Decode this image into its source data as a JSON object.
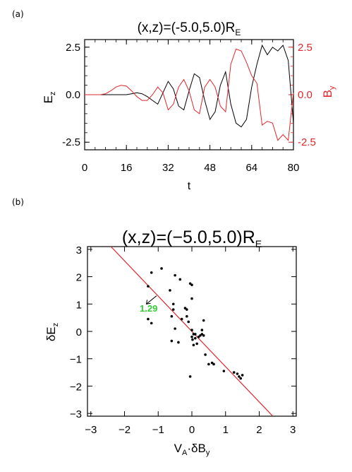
{
  "chart_data": [
    {
      "panel_label": "(a)",
      "type": "line",
      "title": "(x,z)=(-5.0,5.0)R",
      "title_subscript": "E",
      "xlabel": "t",
      "ylabel_left": "E",
      "ylabel_left_subscript": "z",
      "ylabel_right": "B",
      "ylabel_right_subscript": "y",
      "xlim": [
        0,
        80
      ],
      "ylim": [
        -2.9,
        2.9
      ],
      "x_ticks": [
        "0",
        "16",
        "32",
        "48",
        "64",
        "80"
      ],
      "x_tick_values": [
        0,
        16,
        32,
        48,
        64,
        80
      ],
      "y_ticks_left": [
        "2.5",
        "0.0",
        "-2.5"
      ],
      "y_ticks_right": [
        "2.5",
        "0.0",
        "-2.5"
      ],
      "y_tick_values": [
        2.5,
        0.0,
        -2.5
      ],
      "grid": false,
      "colors": {
        "Ez": "#000000",
        "By": "#e0262b",
        "axis": "#000000"
      },
      "series": [
        {
          "key": "Ez",
          "color": "#000000",
          "x": [
            0,
            2,
            4,
            6,
            8,
            10,
            12,
            14,
            16,
            18,
            20,
            22,
            24,
            26,
            28,
            30,
            32,
            34,
            36,
            38,
            40,
            42,
            44,
            46,
            48,
            50,
            52,
            54,
            56,
            58,
            60,
            62,
            64,
            66,
            68,
            70,
            72,
            74,
            76,
            78,
            80
          ],
          "values": [
            0.0,
            0.0,
            0.0,
            0.0,
            0.0,
            0.0,
            0.0,
            0.0,
            0.0,
            0.05,
            0.1,
            0.05,
            -0.1,
            -0.3,
            -0.5,
            0.1,
            0.7,
            0.3,
            -0.6,
            -0.8,
            0.2,
            1.1,
            0.9,
            -0.3,
            -1.3,
            -0.9,
            0.5,
            1.2,
            -0.5,
            -1.5,
            -1.7,
            -1.3,
            0.4,
            1.6,
            2.6,
            2.1,
            2.5,
            2.3,
            2.6,
            1.8,
            -1.5
          ]
        },
        {
          "key": "By",
          "color": "#e0262b",
          "x": [
            0,
            2,
            4,
            6,
            8,
            10,
            12,
            14,
            16,
            18,
            20,
            22,
            24,
            26,
            28,
            30,
            32,
            34,
            36,
            38,
            40,
            42,
            44,
            46,
            48,
            50,
            52,
            54,
            56,
            58,
            60,
            62,
            64,
            66,
            68,
            70,
            72,
            74,
            76,
            78,
            80
          ],
          "values": [
            0.0,
            0.0,
            0.0,
            0.0,
            0.05,
            0.2,
            0.4,
            0.5,
            0.45,
            0.2,
            -0.1,
            -0.3,
            -0.3,
            0.0,
            0.4,
            0.1,
            -0.8,
            -0.5,
            0.4,
            0.8,
            0.2,
            -0.8,
            -1.0,
            0.4,
            0.8,
            0.4,
            -0.6,
            -0.9,
            1.6,
            2.4,
            2.3,
            1.7,
            1.0,
            0.6,
            -1.6,
            -1.4,
            -1.5,
            -2.4,
            -2.1,
            -2.4,
            0.1
          ]
        }
      ]
    },
    {
      "panel_label": "(b)",
      "type": "scatter",
      "title": "(x,z)=(−5.0,5.0)R",
      "title_subscript": "E",
      "xlabel": "V",
      "xlabel_subscript_1": "A",
      "xlabel_mid": "·δB",
      "xlabel_subscript_2": "y",
      "ylabel": "δE",
      "ylabel_subscript": "z",
      "xlim": [
        -3.1,
        3.1
      ],
      "ylim": [
        -3.1,
        3.1
      ],
      "x_ticks": [
        "−3",
        "−2",
        "−1",
        "0",
        "1",
        "2",
        "3"
      ],
      "x_tick_values": [
        -3,
        -2,
        -1,
        0,
        1,
        2,
        3
      ],
      "y_ticks": [
        "3",
        "2",
        "1",
        "0",
        "−1",
        "−2",
        "−3"
      ],
      "y_tick_values": [
        3,
        2,
        1,
        0,
        -1,
        -2,
        -3
      ],
      "grid": false,
      "annotation": "1.29",
      "annotation_color": "#33cc33",
      "fit_line": {
        "slope": -1.29,
        "intercept": 0.0,
        "color": "#e0262b"
      },
      "points": [
        {
          "x": -1.3,
          "y": 1.65
        },
        {
          "x": -1.2,
          "y": 2.15
        },
        {
          "x": -1.3,
          "y": 0.45
        },
        {
          "x": -1.2,
          "y": 0.3
        },
        {
          "x": -0.9,
          "y": 2.3
        },
        {
          "x": -0.65,
          "y": 1.5
        },
        {
          "x": -0.55,
          "y": 1.0
        },
        {
          "x": -0.6,
          "y": 0.55
        },
        {
          "x": -0.55,
          "y": 0.8
        },
        {
          "x": -0.5,
          "y": 0.1
        },
        {
          "x": -0.6,
          "y": -0.35
        },
        {
          "x": -0.4,
          "y": -0.4
        },
        {
          "x": -0.5,
          "y": 2.05
        },
        {
          "x": -0.35,
          "y": 1.9
        },
        {
          "x": -0.3,
          "y": 0.45
        },
        {
          "x": -0.2,
          "y": 0.85
        },
        {
          "x": -0.15,
          "y": 0.8
        },
        {
          "x": -0.15,
          "y": 0.55
        },
        {
          "x": -0.1,
          "y": 0.35
        },
        {
          "x": -0.05,
          "y": 1.75
        },
        {
          "x": 0.0,
          "y": 1.7
        },
        {
          "x": 0.0,
          "y": 1.2
        },
        {
          "x": 0.0,
          "y": 0.05
        },
        {
          "x": 0.05,
          "y": -0.1
        },
        {
          "x": 0.0,
          "y": -0.2
        },
        {
          "x": 0.02,
          "y": -0.3
        },
        {
          "x": 0.05,
          "y": -0.5
        },
        {
          "x": 0.1,
          "y": -0.1
        },
        {
          "x": 0.1,
          "y": -0.25
        },
        {
          "x": 0.15,
          "y": -0.45
        },
        {
          "x": 0.2,
          "y": -0.2
        },
        {
          "x": 0.25,
          "y": -0.15
        },
        {
          "x": 0.3,
          "y": -0.1
        },
        {
          "x": 0.35,
          "y": -0.15
        },
        {
          "x": 0.35,
          "y": 0.4
        },
        {
          "x": 0.3,
          "y": 0.05
        },
        {
          "x": 0.4,
          "y": -0.85
        },
        {
          "x": 0.5,
          "y": -1.2
        },
        {
          "x": 0.6,
          "y": -1.15
        },
        {
          "x": 0.65,
          "y": -1.2
        },
        {
          "x": -0.05,
          "y": -1.65
        },
        {
          "x": 0.95,
          "y": -1.45
        },
        {
          "x": 1.25,
          "y": -1.5
        },
        {
          "x": 1.35,
          "y": -1.55
        },
        {
          "x": 1.4,
          "y": -1.65
        },
        {
          "x": 1.5,
          "y": -1.6
        },
        {
          "x": 1.45,
          "y": -1.72
        }
      ]
    }
  ]
}
